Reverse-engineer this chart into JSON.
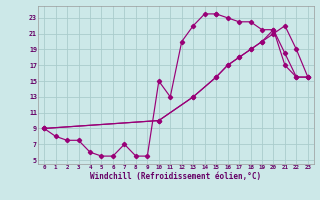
{
  "xlabel": "Windchill (Refroidissement éolien,°C)",
  "bg_color": "#cce8e8",
  "grid_color": "#aacccc",
  "line_color": "#990077",
  "xlim": [
    -0.5,
    23.5
  ],
  "ylim": [
    4.5,
    24.5
  ],
  "xticks": [
    0,
    1,
    2,
    3,
    4,
    5,
    6,
    7,
    8,
    9,
    10,
    11,
    12,
    13,
    14,
    15,
    16,
    17,
    18,
    19,
    20,
    21,
    22,
    23
  ],
  "yticks": [
    5,
    7,
    9,
    11,
    13,
    15,
    17,
    19,
    21,
    23
  ],
  "curve_main_x": [
    0,
    1,
    2,
    3,
    4,
    5,
    6,
    7,
    8,
    9,
    10,
    11,
    12,
    13,
    14,
    15,
    15,
    16,
    17,
    18,
    19,
    20,
    21,
    22,
    23
  ],
  "curve_main_y": [
    9,
    8,
    7.5,
    7.5,
    6,
    5.5,
    5.5,
    7,
    5.5,
    5.5,
    15,
    13,
    20,
    22,
    23.5,
    23.5,
    23.5,
    23,
    22.5,
    22.5,
    21.5,
    21.5,
    17,
    15.5,
    15.5
  ],
  "curve_diag1_x": [
    0,
    10,
    13,
    15,
    16,
    17,
    18,
    19,
    20,
    21,
    22,
    23
  ],
  "curve_diag1_y": [
    9,
    10,
    13,
    15.5,
    17,
    18,
    19,
    20,
    21,
    22,
    19,
    15.5
  ],
  "curve_diag2_x": [
    0,
    10,
    13,
    15,
    16,
    17,
    18,
    19,
    20,
    21,
    22,
    23
  ],
  "curve_diag2_y": [
    9,
    10,
    13,
    15.5,
    17,
    18,
    19,
    20,
    21.5,
    18.5,
    15.5,
    15.5
  ]
}
